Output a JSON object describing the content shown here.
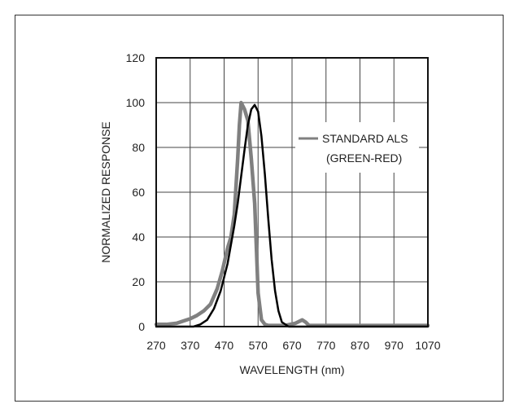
{
  "chart_data": {
    "type": "line",
    "title": "",
    "xlabel": "WAVELENGTH (nm)",
    "ylabel": "NORMALIZED RESPONSE",
    "xlim": [
      270,
      1070
    ],
    "ylim": [
      0,
      120
    ],
    "x_ticks": [
      270,
      370,
      470,
      570,
      670,
      770,
      870,
      970,
      1070
    ],
    "y_ticks": [
      0,
      20,
      40,
      60,
      80,
      100,
      120
    ],
    "grid": true,
    "legend": {
      "placement": "top-right",
      "entries": [
        "STANDARD ALS",
        "(GREEN-RED)"
      ]
    },
    "series": [
      {
        "name": "STANDARD ALS (GREEN-RED)",
        "color": "#808080",
        "x": [
          270,
          300,
          330,
          350,
          370,
          390,
          410,
          430,
          450,
          465,
          480,
          490,
          500,
          510,
          515,
          520,
          530,
          540,
          550,
          560,
          565,
          570,
          580,
          590,
          600,
          650,
          680,
          700,
          710,
          720,
          800,
          1070
        ],
        "y": [
          1,
          1,
          1.5,
          2.5,
          3.5,
          5,
          7,
          10,
          17,
          25,
          35,
          40,
          50,
          75,
          90,
          100,
          97,
          92,
          75,
          55,
          35,
          15,
          3,
          1,
          0.5,
          0.5,
          1.5,
          3,
          2,
          0.5,
          0.5,
          0.5
        ]
      },
      {
        "color": "#000000",
        "x": [
          270,
          380,
          400,
          420,
          440,
          460,
          480,
          500,
          510,
          520,
          530,
          540,
          550,
          560,
          570,
          580,
          590,
          600,
          610,
          620,
          630,
          640,
          660,
          700,
          1070
        ],
        "y": [
          0,
          0,
          1,
          3,
          8,
          16,
          28,
          45,
          55,
          67,
          79,
          90,
          97,
          99,
          96,
          85,
          68,
          48,
          30,
          16,
          7,
          2,
          0,
          0,
          0
        ]
      }
    ]
  }
}
